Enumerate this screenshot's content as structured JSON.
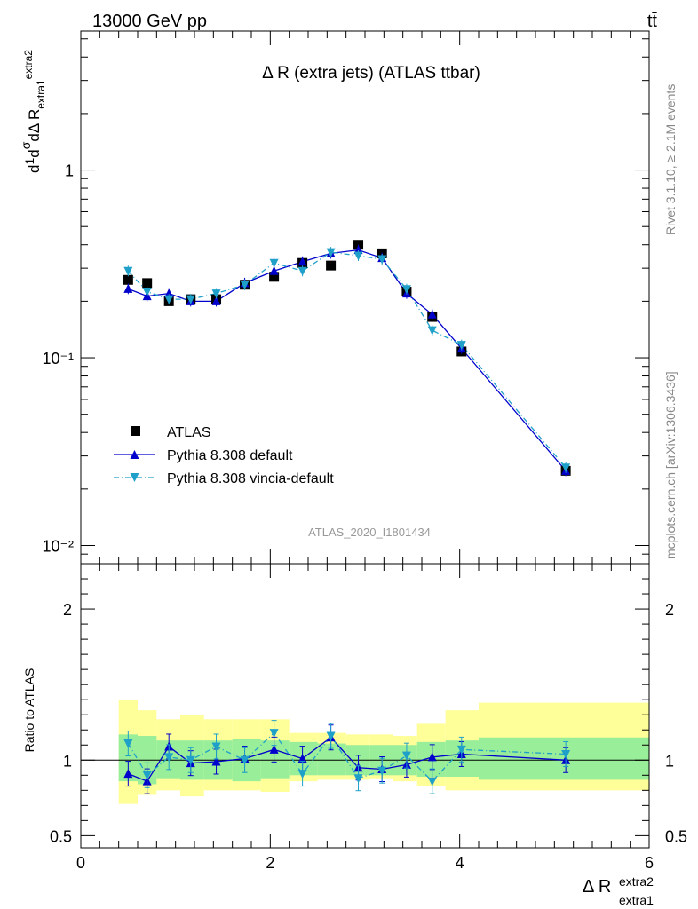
{
  "header": {
    "energy_label": "13000 GeV pp",
    "process_label": "tt̄"
  },
  "side_labels": {
    "rivet": "Rivet 3.1.10, ≥ 2.1M events",
    "mcplots": "mcplots.cern.ch [arXiv:1306.3436]"
  },
  "chart_data": [
    {
      "type": "scatter",
      "panel": "main",
      "title": "Δ R (extra jets) (ATLAS ttbar)",
      "watermark": "ATLAS_2020_I1801434",
      "ylabel": "1/σ dσ^ttd / dΔ R_extra1^extra2",
      "y_scale": "log",
      "xlim": [
        0,
        6
      ],
      "ylim": [
        0.008,
        5.5
      ],
      "y_ticks": [
        {
          "v": 0.01,
          "label": "10⁻²"
        },
        {
          "v": 0.1,
          "label": "10⁻¹"
        },
        {
          "v": 1,
          "label": "1"
        }
      ],
      "legend_position": "bottom-left",
      "x": [
        0.5,
        0.7,
        0.93,
        1.16,
        1.43,
        1.73,
        2.04,
        2.34,
        2.64,
        2.93,
        3.18,
        3.44,
        3.71,
        4.02,
        5.12
      ],
      "series": [
        {
          "name": "ATLAS",
          "color": "#000000",
          "marker": "square",
          "values": [
            0.26,
            0.25,
            0.2,
            0.205,
            0.205,
            0.245,
            0.27,
            0.32,
            0.31,
            0.4,
            0.36,
            0.225,
            0.165,
            0.108,
            0.025
          ]
        },
        {
          "name": "Pythia 8.308 default",
          "color": "#0000cc",
          "marker": "triangle-up",
          "line": "solid",
          "values": [
            0.233,
            0.213,
            0.22,
            0.2,
            0.2,
            0.25,
            0.29,
            0.325,
            0.36,
            0.375,
            0.34,
            0.22,
            0.17,
            0.112,
            0.025
          ]
        },
        {
          "name": "Pythia 8.308 vincia-default",
          "color": "#1fa0c8",
          "marker": "triangle-down",
          "line": "dashdot",
          "values": [
            0.29,
            0.225,
            0.205,
            0.205,
            0.22,
            0.245,
            0.32,
            0.29,
            0.365,
            0.35,
            0.335,
            0.232,
            0.14,
            0.117,
            0.026
          ]
        }
      ]
    },
    {
      "type": "scatter",
      "panel": "ratio",
      "xlabel": "Δ R_extra1^extra2",
      "ylabel": "Ratio to ATLAS",
      "xlim": [
        0,
        6
      ],
      "ylim": [
        0.42,
        2.3
      ],
      "x_ticks": [
        0,
        2,
        4,
        6
      ],
      "y_ticks": [
        0.5,
        1,
        2
      ],
      "x": [
        0.5,
        0.7,
        0.93,
        1.16,
        1.43,
        1.73,
        2.04,
        2.34,
        2.64,
        2.93,
        3.18,
        3.44,
        3.71,
        4.02,
        5.12
      ],
      "bins": [
        [
          0.4,
          0.6
        ],
        [
          0.6,
          0.8
        ],
        [
          0.8,
          1.05
        ],
        [
          1.05,
          1.3
        ],
        [
          1.3,
          1.6
        ],
        [
          1.6,
          1.9
        ],
        [
          1.9,
          2.2
        ],
        [
          2.2,
          2.5
        ],
        [
          2.5,
          2.8
        ],
        [
          2.8,
          3.05
        ],
        [
          3.05,
          3.3
        ],
        [
          3.3,
          3.55
        ],
        [
          3.55,
          3.85
        ],
        [
          3.85,
          4.2
        ],
        [
          4.2,
          6.0
        ]
      ],
      "band_inner": [
        [
          0.86,
          1.17
        ],
        [
          0.84,
          1.16
        ],
        [
          0.88,
          1.13
        ],
        [
          0.87,
          1.13
        ],
        [
          0.87,
          1.13
        ],
        [
          0.86,
          1.14
        ],
        [
          0.88,
          1.13
        ],
        [
          0.9,
          1.12
        ],
        [
          0.9,
          1.11
        ],
        [
          0.9,
          1.1
        ],
        [
          0.9,
          1.1
        ],
        [
          0.9,
          1.1
        ],
        [
          0.89,
          1.12
        ],
        [
          0.89,
          1.13
        ],
        [
          0.87,
          1.15
        ]
      ],
      "band_outer": [
        [
          0.71,
          1.4
        ],
        [
          0.77,
          1.33
        ],
        [
          0.8,
          1.27
        ],
        [
          0.76,
          1.3
        ],
        [
          0.8,
          1.27
        ],
        [
          0.8,
          1.27
        ],
        [
          0.79,
          1.27
        ],
        [
          0.86,
          1.18
        ],
        [
          0.87,
          1.18
        ],
        [
          0.87,
          1.17
        ],
        [
          0.88,
          1.17
        ],
        [
          0.86,
          1.16
        ],
        [
          0.83,
          1.24
        ],
        [
          0.8,
          1.33
        ],
        [
          0.8,
          1.38
        ]
      ],
      "series": [
        {
          "name": "Pythia 8.308 default",
          "color": "#0000cc",
          "marker": "triangle-up",
          "line": "solid",
          "values": [
            0.91,
            0.86,
            1.09,
            0.98,
            0.99,
            1.01,
            1.07,
            1.01,
            1.15,
            0.95,
            0.94,
            0.97,
            1.02,
            1.04,
            1.0
          ]
        },
        {
          "name": "Pythia 8.308 vincia-default",
          "color": "#1fa0c8",
          "marker": "triangle-down",
          "line": "dashdot",
          "values": [
            1.11,
            0.9,
            1.02,
            1.0,
            1.09,
            1.0,
            1.18,
            0.91,
            1.16,
            0.88,
            0.93,
            1.03,
            0.86,
            1.07,
            1.04
          ]
        }
      ]
    }
  ]
}
